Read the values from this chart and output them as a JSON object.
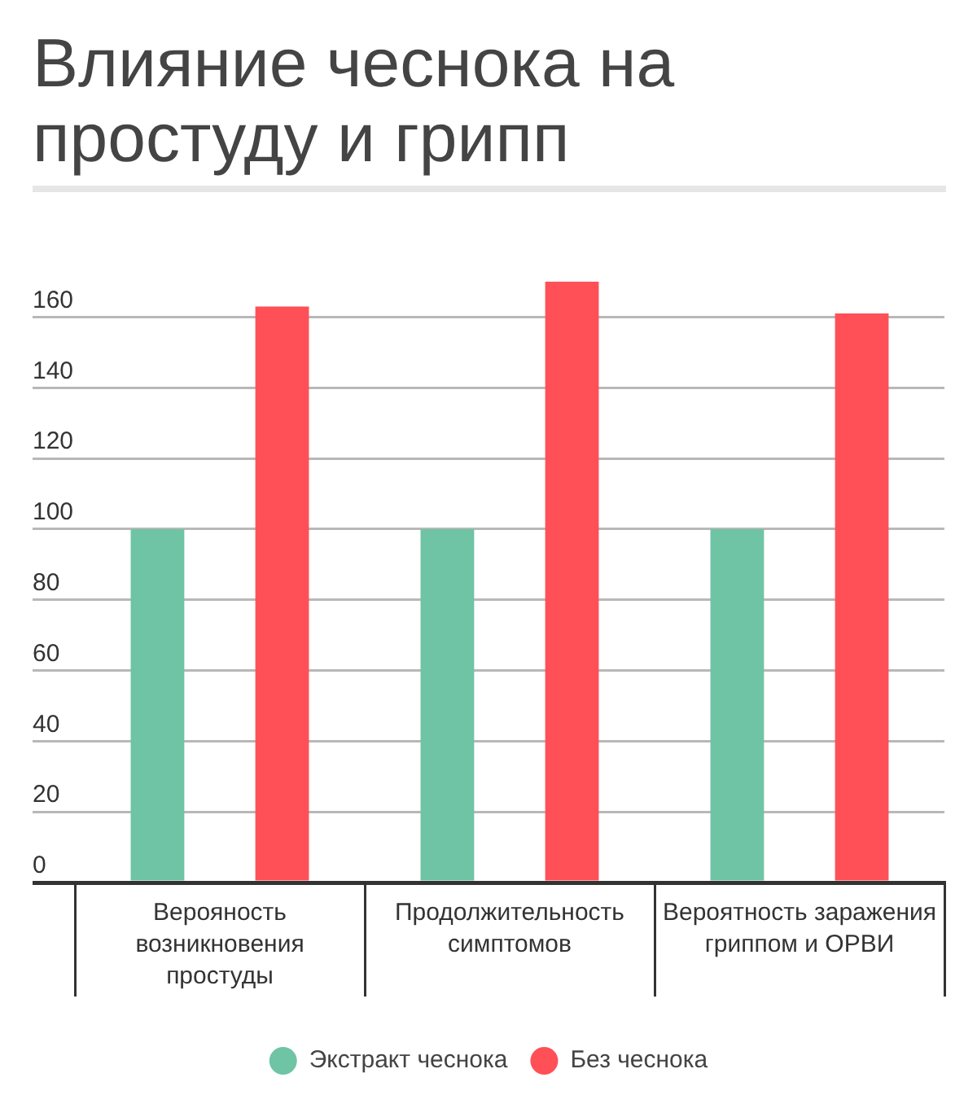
{
  "chart_data": {
    "type": "bar",
    "title": "Влияние чеснока на простуду и грипп",
    "categories": [
      "Верояность возникновения простуды",
      "Продолжительность симптомов",
      "Вероятность заражения гриппом и ОРВИ"
    ],
    "series": [
      {
        "name": "Экстракт чеснока",
        "color": "#6ec4a5",
        "values": [
          100,
          100,
          100
        ]
      },
      {
        "name": "Без чеснока",
        "color": "#ff5057",
        "values": [
          163,
          170,
          161
        ]
      }
    ],
    "ylim": [
      0,
      170
    ],
    "yticks": [
      0,
      20,
      40,
      60,
      80,
      100,
      120,
      140,
      160
    ],
    "grid": "y",
    "legend": "bottom"
  }
}
